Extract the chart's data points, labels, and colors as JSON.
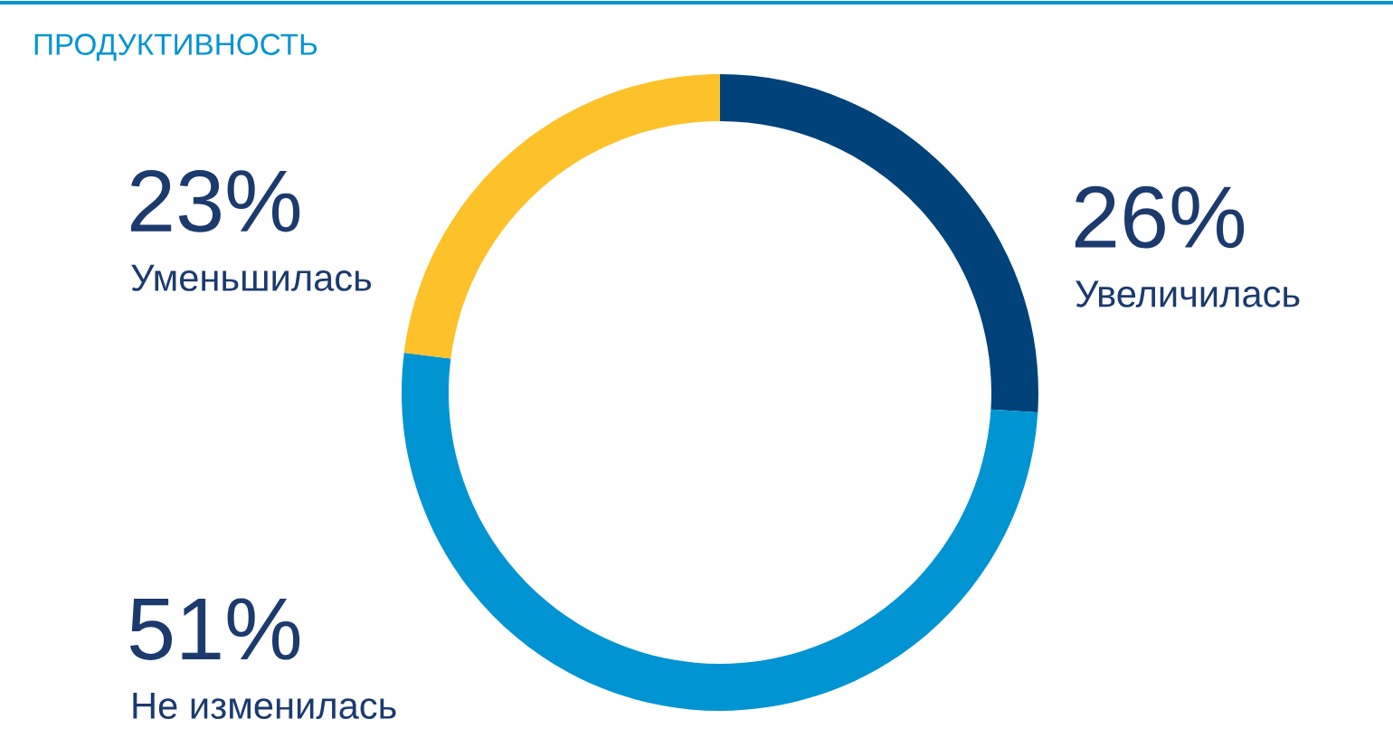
{
  "chart_data": {
    "type": "donut",
    "title": "ПРОДУКТИВНОСТЬ",
    "categories": [
      "Увеличилась",
      "Не изменилась",
      "Уменьшилась"
    ],
    "values": [
      26,
      51,
      23
    ],
    "value_labels": [
      "26%",
      "51%",
      "23%"
    ],
    "colors": [
      "#00427a",
      "#0094d2",
      "#fdc12a"
    ],
    "legend": false
  }
}
